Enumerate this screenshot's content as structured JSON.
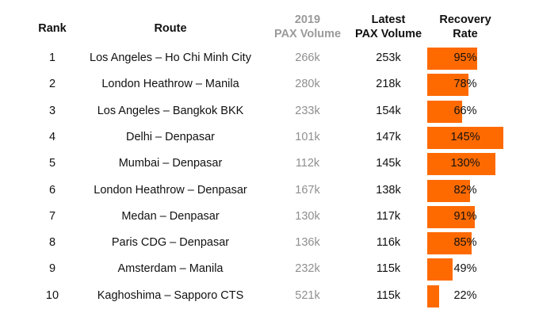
{
  "colors": {
    "bar": "#ff6a00",
    "muted_text": "#9a9a9a"
  },
  "chart_data": {
    "type": "table",
    "headers": {
      "rank": "Rank",
      "route": "Route",
      "pax2019_line1": "2019",
      "pax2019_line2": "PAX Volume",
      "latest_line1": "Latest",
      "latest_line2": "PAX Volume",
      "recovery_line1": "Recovery",
      "recovery_line2": "Rate"
    },
    "rows": [
      {
        "rank": "1",
        "route": "Los Angeles – Ho Chi Minh City",
        "pax2019": "266k",
        "latest": "253k",
        "recovery": 95,
        "recovery_label": "95%"
      },
      {
        "rank": "2",
        "route": "London Heathrow – Manila",
        "pax2019": "280k",
        "latest": "218k",
        "recovery": 78,
        "recovery_label": "78%"
      },
      {
        "rank": "3",
        "route": "Los Angeles – Bangkok BKK",
        "pax2019": "233k",
        "latest": "154k",
        "recovery": 66,
        "recovery_label": "66%"
      },
      {
        "rank": "4",
        "route": "Delhi – Denpasar",
        "pax2019": "101k",
        "latest": "147k",
        "recovery": 145,
        "recovery_label": "145%"
      },
      {
        "rank": "5",
        "route": "Mumbai – Denpasar",
        "pax2019": "112k",
        "latest": "145k",
        "recovery": 130,
        "recovery_label": "130%"
      },
      {
        "rank": "6",
        "route": "London Heathrow – Denpasar",
        "pax2019": "167k",
        "latest": "138k",
        "recovery": 82,
        "recovery_label": "82%"
      },
      {
        "rank": "7",
        "route": "Medan – Denpasar",
        "pax2019": "130k",
        "latest": "117k",
        "recovery": 91,
        "recovery_label": "91%"
      },
      {
        "rank": "8",
        "route": "Paris CDG – Denpasar",
        "pax2019": "136k",
        "latest": "116k",
        "recovery": 85,
        "recovery_label": "85%"
      },
      {
        "rank": "9",
        "route": "Amsterdam – Manila",
        "pax2019": "232k",
        "latest": "115k",
        "recovery": 49,
        "recovery_label": "49%"
      },
      {
        "rank": "10",
        "route": "Kaghoshima – Sapporo CTS",
        "pax2019": "521k",
        "latest": "115k",
        "recovery": 22,
        "recovery_label": "22%"
      }
    ]
  }
}
